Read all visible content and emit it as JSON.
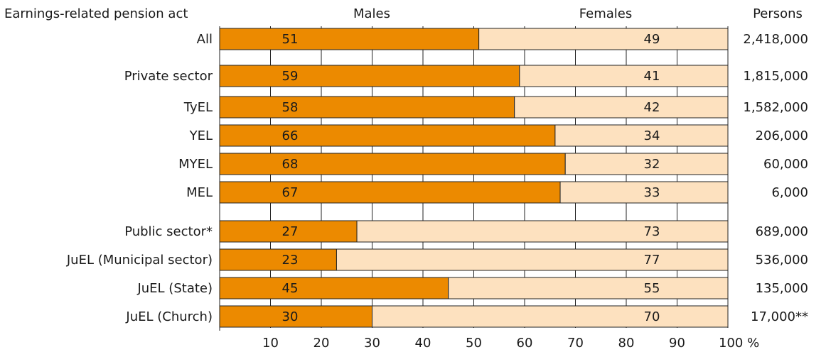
{
  "chart_data": {
    "type": "bar",
    "stacked": true,
    "orientation": "horizontal",
    "header": {
      "category_label": "Earnings-related pension act",
      "series_1": "Males",
      "series_2": "Females",
      "total_label": "Persons"
    },
    "categories": [
      "All",
      "Private sector",
      "TyEL",
      "YEL",
      "MYEL",
      "MEL",
      "Public sector*",
      "JuEL (Municipal sector)",
      "JuEL (State)",
      "JuEL (Church)"
    ],
    "series": [
      {
        "name": "Males",
        "values": [
          51,
          59,
          58,
          66,
          68,
          67,
          27,
          23,
          45,
          30
        ],
        "color": "#ec8a00"
      },
      {
        "name": "Females",
        "values": [
          49,
          41,
          42,
          34,
          32,
          33,
          73,
          77,
          55,
          70
        ],
        "color": "#fde1bf"
      }
    ],
    "labels": {
      "males": [
        "51",
        "59",
        "58",
        "66",
        "68",
        "67",
        "27",
        "23",
        "45",
        "30"
      ],
      "females": [
        "49",
        "41",
        "42",
        "34",
        "32",
        "33",
        "73",
        "77",
        "55",
        "70"
      ]
    },
    "persons": [
      "2,418,000",
      "1,815,000",
      "1,582,000",
      "206,000",
      "60,000",
      "6,000",
      "689,000",
      "536,000",
      "135,000",
      "17,000**"
    ],
    "xlim": [
      0,
      100
    ],
    "x_ticks": [
      10,
      20,
      30,
      40,
      50,
      60,
      70,
      80,
      90,
      100
    ],
    "x_tick_labels": [
      "10",
      "20",
      "30",
      "40",
      "50",
      "60",
      "70",
      "80",
      "90",
      "100 %"
    ],
    "grid": true,
    "legend": "none"
  }
}
